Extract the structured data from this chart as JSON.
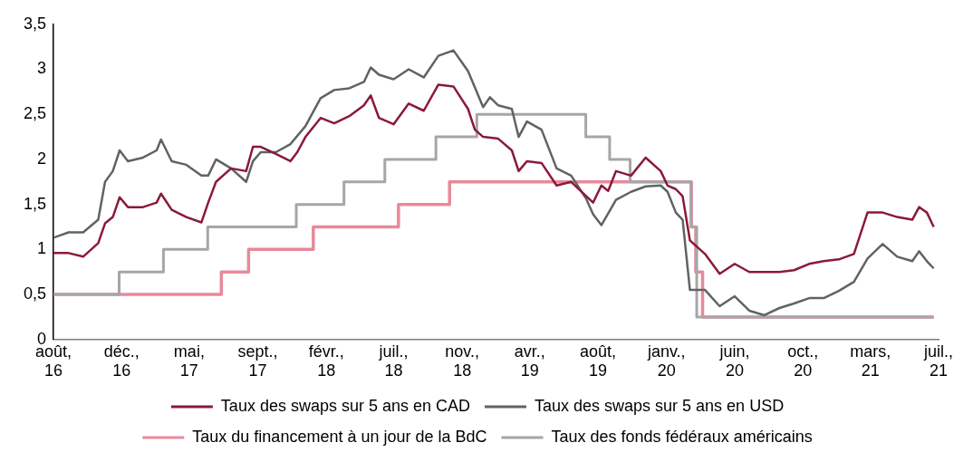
{
  "chart_data": {
    "type": "line",
    "legend": "bottom",
    "marker": "none",
    "line_style": "solid",
    "xlim": [
      "2016-08-01",
      "2021-07-25"
    ],
    "xticks": [
      {
        "value": "2016-08-01",
        "label": "août, 16"
      },
      {
        "value": "2016-12-19",
        "label": "déc., 16"
      },
      {
        "value": "2017-05-07",
        "label": "mai, 17"
      },
      {
        "value": "2017-09-25",
        "label": "sept., 17"
      },
      {
        "value": "2018-02-13",
        "label": "févr., 18"
      },
      {
        "value": "2018-07-01",
        "label": "juil., 18"
      },
      {
        "value": "2018-11-19",
        "label": "nov., 18"
      },
      {
        "value": "2019-04-07",
        "label": "avr., 19"
      },
      {
        "value": "2019-08-25",
        "label": "août, 19"
      },
      {
        "value": "2020-01-13",
        "label": "janv., 20"
      },
      {
        "value": "2020-06-01",
        "label": "juin, 20"
      },
      {
        "value": "2020-10-19",
        "label": "oct., 20"
      },
      {
        "value": "2021-03-07",
        "label": "mars, 21"
      },
      {
        "value": "2021-07-25",
        "label": "juil., 21"
      }
    ],
    "ylim": [
      0,
      3.5
    ],
    "yticks": [
      0,
      {
        "value": 0.5,
        "label": "0,5"
      },
      1,
      {
        "value": 1.5,
        "label": "1,5"
      },
      2,
      {
        "value": 2.5,
        "label": "2,5"
      },
      3,
      {
        "value": 3.5,
        "label": "3,5"
      }
    ],
    "series": [
      {
        "name": "Taux des swaps sur 5 ans en CAD",
        "type": "line",
        "color": "#8b1a37",
        "x": [
          "2016-08-01",
          "2016-09-01",
          "2016-10-01",
          "2016-11-01",
          "2016-11-15",
          "2016-12-01",
          "2016-12-15",
          "2017-01-01",
          "2017-02-01",
          "2017-03-01",
          "2017-03-10",
          "2017-04-01",
          "2017-05-01",
          "2017-06-01",
          "2017-06-15",
          "2017-07-01",
          "2017-08-01",
          "2017-09-01",
          "2017-09-15",
          "2017-10-01",
          "2017-11-01",
          "2017-12-01",
          "2017-12-15",
          "2018-01-01",
          "2018-02-01",
          "2018-03-01",
          "2018-04-01",
          "2018-05-01",
          "2018-05-15",
          "2018-06-01",
          "2018-07-01",
          "2018-08-01",
          "2018-09-01",
          "2018-10-01",
          "2018-11-01",
          "2018-12-01",
          "2018-12-15",
          "2019-01-01",
          "2019-02-01",
          "2019-03-01",
          "2019-03-15",
          "2019-04-01",
          "2019-05-01",
          "2019-06-01",
          "2019-07-01",
          "2019-08-01",
          "2019-08-15",
          "2019-09-01",
          "2019-09-15",
          "2019-10-01",
          "2019-11-01",
          "2019-12-01",
          "2020-01-01",
          "2020-01-15",
          "2020-02-01",
          "2020-02-15",
          "2020-03-01",
          "2020-04-01",
          "2020-05-01",
          "2020-06-01",
          "2020-07-01",
          "2020-08-01",
          "2020-09-01",
          "2020-10-01",
          "2020-11-01",
          "2020-12-01",
          "2021-01-01",
          "2021-02-01",
          "2021-03-01",
          "2021-04-01",
          "2021-05-01",
          "2021-06-01",
          "2021-06-15",
          "2021-07-01",
          "2021-07-15"
        ],
        "values": [
          0.96,
          0.96,
          0.92,
          1.07,
          1.29,
          1.36,
          1.58,
          1.47,
          1.47,
          1.52,
          1.62,
          1.44,
          1.36,
          1.3,
          1.52,
          1.75,
          1.9,
          1.87,
          2.14,
          2.14,
          2.06,
          1.98,
          2.08,
          2.25,
          2.46,
          2.4,
          2.48,
          2.6,
          2.71,
          2.46,
          2.39,
          2.62,
          2.54,
          2.83,
          2.81,
          2.56,
          2.33,
          2.25,
          2.23,
          2.1,
          1.87,
          1.98,
          1.96,
          1.71,
          1.75,
          1.59,
          1.52,
          1.71,
          1.65,
          1.87,
          1.82,
          2.02,
          1.87,
          1.71,
          1.67,
          1.59,
          1.1,
          0.95,
          0.73,
          0.84,
          0.75,
          0.75,
          0.75,
          0.77,
          0.84,
          0.87,
          0.89,
          0.95,
          1.41,
          1.41,
          1.36,
          1.33,
          1.47,
          1.41,
          1.25
        ]
      },
      {
        "name": "Taux des swaps sur 5 ans en USD",
        "type": "line",
        "color": "#5f6366",
        "x": [
          "2016-08-01",
          "2016-09-01",
          "2016-10-01",
          "2016-11-01",
          "2016-11-15",
          "2016-12-01",
          "2016-12-15",
          "2017-01-01",
          "2017-02-01",
          "2017-03-01",
          "2017-03-10",
          "2017-04-01",
          "2017-05-01",
          "2017-06-01",
          "2017-06-15",
          "2017-07-01",
          "2017-08-01",
          "2017-09-01",
          "2017-09-15",
          "2017-10-01",
          "2017-11-01",
          "2017-12-01",
          "2018-01-01",
          "2018-02-01",
          "2018-03-01",
          "2018-04-01",
          "2018-05-01",
          "2018-05-15",
          "2018-06-01",
          "2018-07-01",
          "2018-08-01",
          "2018-09-01",
          "2018-10-01",
          "2018-11-01",
          "2018-12-01",
          "2019-01-01",
          "2019-01-15",
          "2019-02-01",
          "2019-03-01",
          "2019-03-15",
          "2019-04-01",
          "2019-05-01",
          "2019-06-01",
          "2019-07-01",
          "2019-08-01",
          "2019-08-15",
          "2019-09-01",
          "2019-09-15",
          "2019-10-01",
          "2019-11-01",
          "2019-12-01",
          "2020-01-01",
          "2020-01-15",
          "2020-02-01",
          "2020-02-15",
          "2020-03-01",
          "2020-04-01",
          "2020-05-01",
          "2020-06-01",
          "2020-07-01",
          "2020-08-01",
          "2020-09-01",
          "2020-10-01",
          "2020-11-01",
          "2020-12-01",
          "2021-01-01",
          "2021-02-01",
          "2021-03-01",
          "2021-04-01",
          "2021-05-01",
          "2021-06-01",
          "2021-06-15",
          "2021-07-01",
          "2021-07-15"
        ],
        "values": [
          1.13,
          1.19,
          1.19,
          1.33,
          1.75,
          1.87,
          2.1,
          1.98,
          2.02,
          2.1,
          2.22,
          1.98,
          1.94,
          1.82,
          1.82,
          2.0,
          1.9,
          1.75,
          1.98,
          2.08,
          2.08,
          2.17,
          2.37,
          2.68,
          2.77,
          2.79,
          2.86,
          3.02,
          2.94,
          2.89,
          3.0,
          2.91,
          3.15,
          3.21,
          2.98,
          2.58,
          2.69,
          2.6,
          2.56,
          2.25,
          2.42,
          2.33,
          1.9,
          1.82,
          1.56,
          1.39,
          1.27,
          1.4,
          1.55,
          1.64,
          1.7,
          1.71,
          1.64,
          1.41,
          1.33,
          0.55,
          0.55,
          0.37,
          0.48,
          0.32,
          0.27,
          0.35,
          0.4,
          0.46,
          0.46,
          0.54,
          0.64,
          0.9,
          1.06,
          0.92,
          0.87,
          0.98,
          0.87,
          0.79
        ]
      },
      {
        "name": "Taux du financement à un jour de la BdC",
        "type": "step",
        "color": "#e8899a",
        "x": [
          "2016-08-01",
          "2017-07-12",
          "2017-09-06",
          "2018-01-17",
          "2018-07-11",
          "2018-10-24",
          "2020-03-04",
          "2020-03-13",
          "2020-03-27",
          "2021-07-15"
        ],
        "values": [
          0.5,
          0.75,
          1.0,
          1.25,
          1.5,
          1.75,
          1.25,
          0.75,
          0.25,
          0.25
        ]
      },
      {
        "name": "Taux des fonds fédéraux américains",
        "type": "step",
        "color": "#a6a6a8",
        "x": [
          "2016-08-01",
          "2016-12-14",
          "2017-03-15",
          "2017-06-14",
          "2017-12-13",
          "2018-03-21",
          "2018-06-13",
          "2018-09-26",
          "2018-12-19",
          "2019-07-31",
          "2019-09-18",
          "2019-10-30",
          "2020-03-03",
          "2020-03-15",
          "2021-07-15"
        ],
        "values": [
          0.5,
          0.75,
          1.0,
          1.25,
          1.5,
          1.75,
          2.0,
          2.25,
          2.5,
          2.25,
          2.0,
          1.75,
          1.25,
          0.25,
          0.25
        ]
      }
    ]
  }
}
